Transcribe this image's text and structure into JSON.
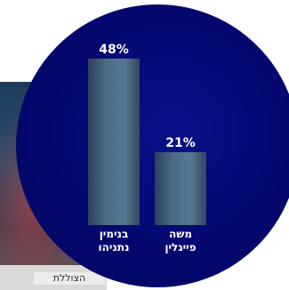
{
  "backdrop": {
    "caption": "הצוללת"
  },
  "chart_data": {
    "type": "bar",
    "title": "",
    "xlabel": "",
    "ylabel": "",
    "ylim": [
      0,
      50
    ],
    "categories": [
      [
        "בנימין",
        "נתניהו"
      ],
      [
        "משה",
        "פייגלין"
      ]
    ],
    "values": [
      48,
      21
    ],
    "value_labels": [
      "48%",
      "21%"
    ],
    "grid": false
  }
}
